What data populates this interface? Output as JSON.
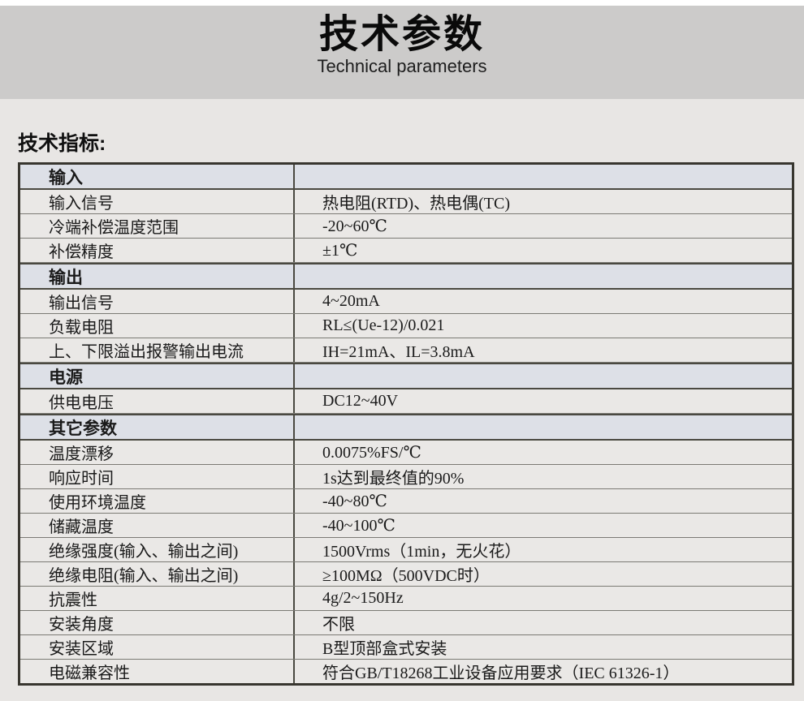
{
  "banner": {
    "title": "技术参数",
    "subtitle": "Technical parameters"
  },
  "heading": "技术指标:",
  "table": {
    "rows": [
      {
        "type": "section",
        "label": "输入",
        "value": ""
      },
      {
        "type": "data",
        "label": "输入信号",
        "value": "热电阻(RTD)、热电偶(TC)"
      },
      {
        "type": "data",
        "label": "冷端补偿温度范围",
        "value": "-20~60℃"
      },
      {
        "type": "data",
        "label": "补偿精度",
        "value": "±1℃"
      },
      {
        "type": "section",
        "label": "输出",
        "value": ""
      },
      {
        "type": "data",
        "label": "输出信号",
        "value": "4~20mA"
      },
      {
        "type": "data",
        "label": "负载电阻",
        "value": "RL≤(Ue-12)/0.021"
      },
      {
        "type": "data",
        "label": "上、下限溢出报警输出电流",
        "value": "IH=21mA、IL=3.8mA"
      },
      {
        "type": "section",
        "label": "电源",
        "value": ""
      },
      {
        "type": "data",
        "label": "供电电压",
        "value": "DC12~40V"
      },
      {
        "type": "section",
        "label": "其它参数",
        "value": ""
      },
      {
        "type": "data",
        "label": "温度漂移",
        "value": "0.0075%FS/℃"
      },
      {
        "type": "data",
        "label": "响应时间",
        "value": "1s达到最终值的90%"
      },
      {
        "type": "data",
        "label": "使用环境温度",
        "value": "-40~80℃"
      },
      {
        "type": "data",
        "label": "储藏温度",
        "value": "-40~100℃"
      },
      {
        "type": "data",
        "label": "绝缘强度(输入、输出之间)",
        "value": "1500Vrms（1min，无火花）"
      },
      {
        "type": "data",
        "label": "绝缘电阻(输入、输出之间)",
        "value": "≥100MΩ（500VDC时）"
      },
      {
        "type": "data",
        "label": "抗震性",
        "value": "4g/2~150Hz"
      },
      {
        "type": "data",
        "label": "安装角度",
        "value": "不限"
      },
      {
        "type": "data",
        "label": "安装区域",
        "value": "B型顶部盒式安装"
      },
      {
        "type": "data",
        "label": "电磁兼容性",
        "value": "符合GB/T18268工业设备应用要求（IEC 61326-1）"
      }
    ]
  },
  "colors": {
    "banner_bg": "#cccbca",
    "page_bg": "#e8e6e4",
    "section_row_bg": "#dde0e7",
    "table_border": "#38362f",
    "row_divider": "#7b7a74",
    "text": "#1a1a1a"
  }
}
